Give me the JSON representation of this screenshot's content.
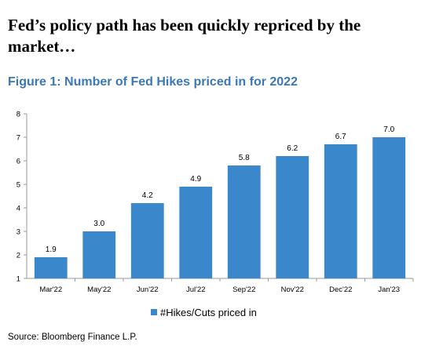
{
  "headline": "Fed’s policy path has been quickly repriced by the market…",
  "source": "Source: Bloomberg Finance L.P.",
  "chart_data": {
    "type": "bar",
    "title": "Figure 1: Number of Fed Hikes priced in for 2022",
    "categories": [
      "Mar'22",
      "May'22",
      "Jun'22",
      "Jul'22",
      "Sep'22",
      "Nov'22",
      "Dec'22",
      "Jan'23"
    ],
    "series": [
      {
        "name": "#Hikes/Cuts priced in",
        "values": [
          1.9,
          3.0,
          4.2,
          4.9,
          5.8,
          6.2,
          6.7,
          7.0
        ]
      }
    ],
    "data_labels": [
      "1.9",
      "3.0",
      "4.2",
      "4.9",
      "5.8",
      "6.2",
      "6.7",
      "7.0"
    ],
    "ylim": [
      1,
      8
    ],
    "yticks": [
      1,
      2,
      3,
      4,
      5,
      6,
      7,
      8
    ],
    "grid": false,
    "legend_position": "bottom",
    "bar_color": "#3b87cc"
  }
}
